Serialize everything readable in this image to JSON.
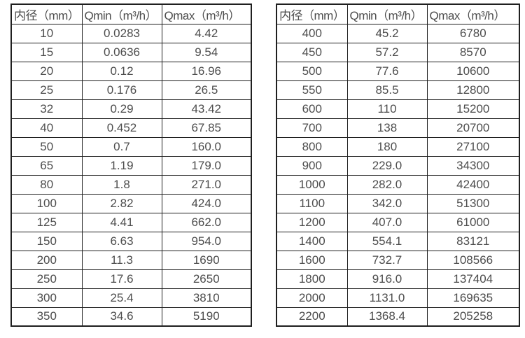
{
  "chart_data": [
    {
      "type": "table",
      "name": "small-diameter-flow-ranges",
      "columns": [
        "内径（mm）",
        "Qmin（m³/h）",
        "Qmax（m³/h）"
      ],
      "rows": [
        [
          "10",
          "0.0283",
          "4.42"
        ],
        [
          "15",
          "0.0636",
          "9.54"
        ],
        [
          "20",
          "0.12",
          "16.96"
        ],
        [
          "25",
          "0.176",
          "26.5"
        ],
        [
          "32",
          "0.29",
          "43.42"
        ],
        [
          "40",
          "0.452",
          "67.85"
        ],
        [
          "50",
          "0.7",
          "160.0"
        ],
        [
          "65",
          "1.19",
          "179.0"
        ],
        [
          "80",
          "1.8",
          "271.0"
        ],
        [
          "100",
          "2.82",
          "424.0"
        ],
        [
          "125",
          "4.41",
          "662.0"
        ],
        [
          "150",
          "6.63",
          "954.0"
        ],
        [
          "200",
          "11.3",
          "1690"
        ],
        [
          "250",
          "17.6",
          "2650"
        ],
        [
          "300",
          "25.4",
          "3810"
        ],
        [
          "350",
          "34.6",
          "5190"
        ]
      ]
    },
    {
      "type": "table",
      "name": "large-diameter-flow-ranges",
      "columns": [
        "内径（mm）",
        "Qmin（m³/h）",
        "Qmax（m³/h）"
      ],
      "rows": [
        [
          "400",
          "45.2",
          "6780"
        ],
        [
          "450",
          "57.2",
          "8570"
        ],
        [
          "500",
          "77.6",
          "10600"
        ],
        [
          "550",
          "85.5",
          "12800"
        ],
        [
          "600",
          "110",
          "15200"
        ],
        [
          "700",
          "138",
          "20700"
        ],
        [
          "800",
          "180",
          "27100"
        ],
        [
          "900",
          "229.0",
          "34300"
        ],
        [
          "1000",
          "282.0",
          "42400"
        ],
        [
          "1100",
          "342.0",
          "51300"
        ],
        [
          "1200",
          "407.0",
          "61000"
        ],
        [
          "1400",
          "554.1",
          "83121"
        ],
        [
          "1600",
          "732.7",
          "108566"
        ],
        [
          "1800",
          "916.0",
          "137404"
        ],
        [
          "2000",
          "1131.0",
          "169635"
        ],
        [
          "2200",
          "1368.4",
          "205258"
        ]
      ]
    }
  ]
}
